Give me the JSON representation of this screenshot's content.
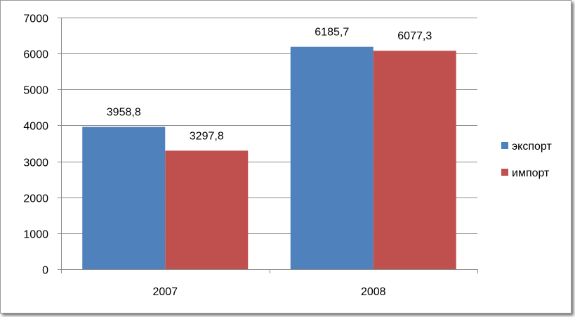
{
  "chart_data": {
    "type": "bar",
    "categories": [
      "2007",
      "2008"
    ],
    "series": [
      {
        "name": "экспорт",
        "values": [
          3958.8,
          6185.7
        ],
        "labels": [
          "3958,8",
          "6185,7"
        ],
        "color": "#4f81bd"
      },
      {
        "name": "импорт",
        "values": [
          3297.8,
          6077.3
        ],
        "labels": [
          "3297,8",
          "6077,3"
        ],
        "color": "#c0504d"
      }
    ],
    "ylim": [
      0,
      7000
    ],
    "yticks": [
      0,
      1000,
      2000,
      3000,
      4000,
      5000,
      6000,
      7000
    ],
    "ytick_labels": [
      "0",
      "1000",
      "2000",
      "3000",
      "4000",
      "5000",
      "6000",
      "7000"
    ],
    "grid": true,
    "legend": "right"
  }
}
